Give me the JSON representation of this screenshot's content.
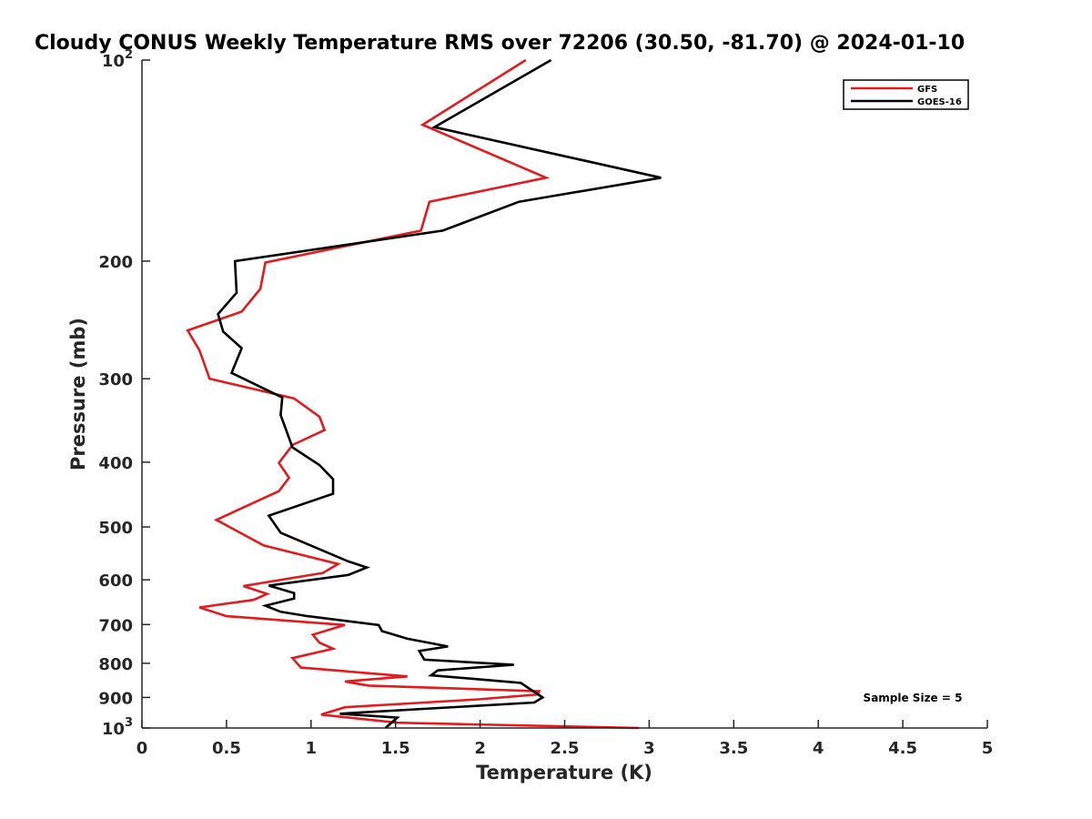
{
  "chart_data": {
    "type": "line",
    "title": "Cloudy CONUS Weekly Temperature RMS over 72206 (30.50, -81.70) @ 2024-01-10",
    "xlabel": "Temperature (K)",
    "ylabel": "Pressure (mb)",
    "xlim": [
      0,
      5
    ],
    "ylim": [
      1000,
      100
    ],
    "y_scale": "log",
    "y_reversed": true,
    "grid": false,
    "legend_position": "top-right",
    "x_ticks": [
      {
        "value": 0,
        "label": "0"
      },
      {
        "value": 0.5,
        "label": "0.5"
      },
      {
        "value": 1,
        "label": "1"
      },
      {
        "value": 1.5,
        "label": "1.5"
      },
      {
        "value": 2,
        "label": "2"
      },
      {
        "value": 2.5,
        "label": "2.5"
      },
      {
        "value": 3,
        "label": "3"
      },
      {
        "value": 3.5,
        "label": "3.5"
      },
      {
        "value": 4,
        "label": "4"
      },
      {
        "value": 4.5,
        "label": "4.5"
      },
      {
        "value": 5,
        "label": "5"
      }
    ],
    "y_ticks": [
      {
        "value": 100,
        "base": "10",
        "exp": "2"
      },
      {
        "value": 200,
        "label": "200"
      },
      {
        "value": 300,
        "label": "300"
      },
      {
        "value": 400,
        "label": "400"
      },
      {
        "value": 500,
        "label": "500"
      },
      {
        "value": 600,
        "label": "600"
      },
      {
        "value": 700,
        "label": "700"
      },
      {
        "value": 800,
        "label": "800"
      },
      {
        "value": 900,
        "label": "900"
      },
      {
        "value": 1000,
        "base": "10",
        "exp": "3"
      }
    ],
    "annotation": "Sample Size = 5",
    "series": [
      {
        "name": "GFS",
        "color": "#e41a1c",
        "points": [
          [
            2.27,
            100
          ],
          [
            1.66,
            125
          ],
          [
            2.39,
            150
          ],
          [
            1.7,
            163
          ],
          [
            1.65,
            180
          ],
          [
            0.73,
            201
          ],
          [
            0.7,
            220
          ],
          [
            0.59,
            238
          ],
          [
            0.27,
            254
          ],
          [
            0.34,
            272
          ],
          [
            0.4,
            300
          ],
          [
            0.9,
            321
          ],
          [
            1.05,
            342
          ],
          [
            1.08,
            358
          ],
          [
            0.89,
            377
          ],
          [
            0.81,
            401
          ],
          [
            0.87,
            422
          ],
          [
            0.81,
            442
          ],
          [
            0.44,
            488
          ],
          [
            0.72,
            533
          ],
          [
            1.16,
            568
          ],
          [
            1.07,
            586
          ],
          [
            0.6,
            613
          ],
          [
            0.74,
            630
          ],
          [
            0.66,
            643
          ],
          [
            0.34,
            660
          ],
          [
            0.5,
            680
          ],
          [
            1.2,
            701
          ],
          [
            1.01,
            725
          ],
          [
            1.05,
            745
          ],
          [
            1.13,
            761
          ],
          [
            0.89,
            786
          ],
          [
            0.94,
            812
          ],
          [
            1.57,
            837
          ],
          [
            1.2,
            852
          ],
          [
            1.34,
            864
          ],
          [
            2.35,
            881
          ],
          [
            2.34,
            891
          ],
          [
            1.99,
            906
          ],
          [
            1.2,
            931
          ],
          [
            1.06,
            955
          ],
          [
            1.51,
            982
          ],
          [
            2.94,
            1000
          ]
        ]
      },
      {
        "name": "GOES-16",
        "color": "#000000",
        "points": [
          [
            2.42,
            100
          ],
          [
            1.73,
            126
          ],
          [
            3.07,
            150
          ],
          [
            2.23,
            163
          ],
          [
            1.78,
            180
          ],
          [
            0.55,
            200
          ],
          [
            0.56,
            223
          ],
          [
            0.45,
            240
          ],
          [
            0.48,
            255
          ],
          [
            0.59,
            270
          ],
          [
            0.53,
            294
          ],
          [
            0.83,
            320
          ],
          [
            0.82,
            340
          ],
          [
            0.89,
            380
          ],
          [
            1.05,
            404
          ],
          [
            1.13,
            424
          ],
          [
            1.13,
            446
          ],
          [
            0.75,
            481
          ],
          [
            0.82,
            510
          ],
          [
            1.22,
            563
          ],
          [
            1.33,
            575
          ],
          [
            1.22,
            590
          ],
          [
            0.75,
            612
          ],
          [
            0.9,
            628
          ],
          [
            0.9,
            640
          ],
          [
            0.73,
            656
          ],
          [
            0.82,
            670
          ],
          [
            0.98,
            680
          ],
          [
            1.4,
            701
          ],
          [
            1.42,
            716
          ],
          [
            1.57,
            735
          ],
          [
            1.81,
            755
          ],
          [
            1.64,
            767
          ],
          [
            1.67,
            790
          ],
          [
            2.2,
            804
          ],
          [
            1.75,
            820
          ],
          [
            1.71,
            834
          ],
          [
            2.24,
            856
          ],
          [
            2.37,
            900
          ],
          [
            2.32,
            916
          ],
          [
            1.17,
            952
          ],
          [
            1.51,
            965
          ],
          [
            1.44,
            1000
          ]
        ]
      }
    ]
  }
}
